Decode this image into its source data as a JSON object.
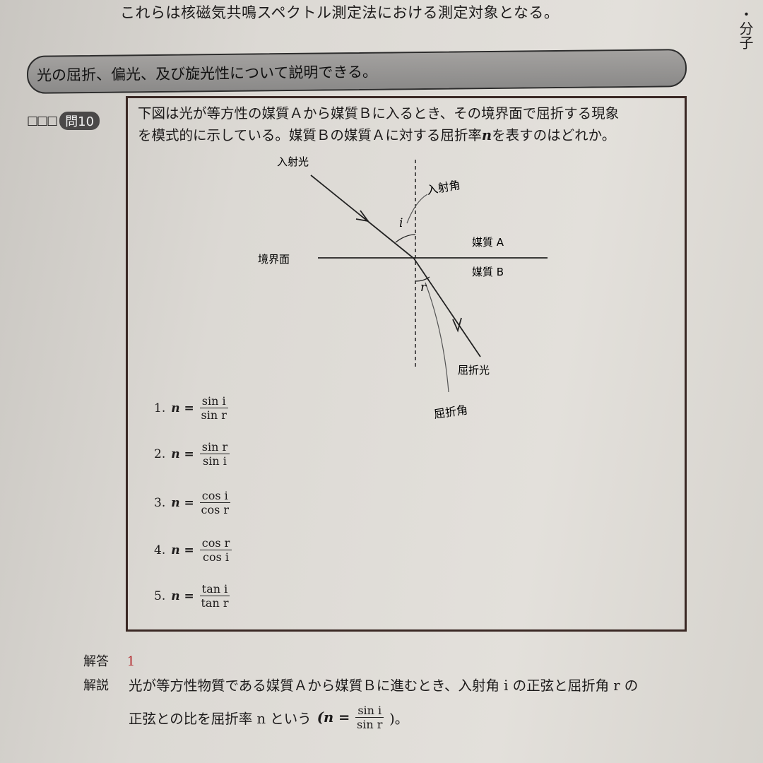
{
  "page": {
    "top_line": "これらは核磁気共鳴スペクトル測定法における測定対象となる。",
    "side_header": "・分子",
    "section_banner": "光の屈折、偏光、及び旋光性について説明できる。"
  },
  "question": {
    "checkboxes": "□□□",
    "number": "問10",
    "text_line1": "下図は光が等方性の媒質Ａから媒質Ｂに入るとき、その境界面で屈折する現象",
    "text_line2_pre": "を模式的に示している。媒質Ｂの媒質Ａに対する屈折率",
    "text_line2_var": "n",
    "text_line2_post": "を表すのはどれか。"
  },
  "diagram": {
    "incident_light": "入射光",
    "interface": "境界面",
    "medium_a": "媒質 A",
    "medium_b": "媒質 B",
    "refracted_light": "屈折光",
    "angle_i": "i",
    "angle_r": "r",
    "handwritten_incident_angle": "入射角",
    "handwritten_refraction_angle": "屈折角"
  },
  "choices": [
    {
      "num": "1.",
      "lhs": "n =",
      "numerator": "sin i",
      "denominator": "sin r"
    },
    {
      "num": "2.",
      "lhs": "n =",
      "numerator": "sin r",
      "denominator": "sin i"
    },
    {
      "num": "3.",
      "lhs": "n =",
      "numerator": "cos i",
      "denominator": "cos r"
    },
    {
      "num": "4.",
      "lhs": "n =",
      "numerator": "cos r",
      "denominator": "cos i"
    },
    {
      "num": "5.",
      "lhs": "n =",
      "numerator": "tan i",
      "denominator": "tan r"
    }
  ],
  "answer": {
    "label": "解答",
    "value": "1",
    "explanation_label": "解説",
    "explanation_line1": "光が等方性物質である媒質Ａから媒質Ｂに進むとき、入射角 i の正弦と屈折角 r の",
    "explanation_line2": "正弦との比を屈折率 n という",
    "formula_prefix": "(n =",
    "formula_num": "sin i",
    "formula_den": "sin r",
    "formula_suffix": ")。"
  }
}
